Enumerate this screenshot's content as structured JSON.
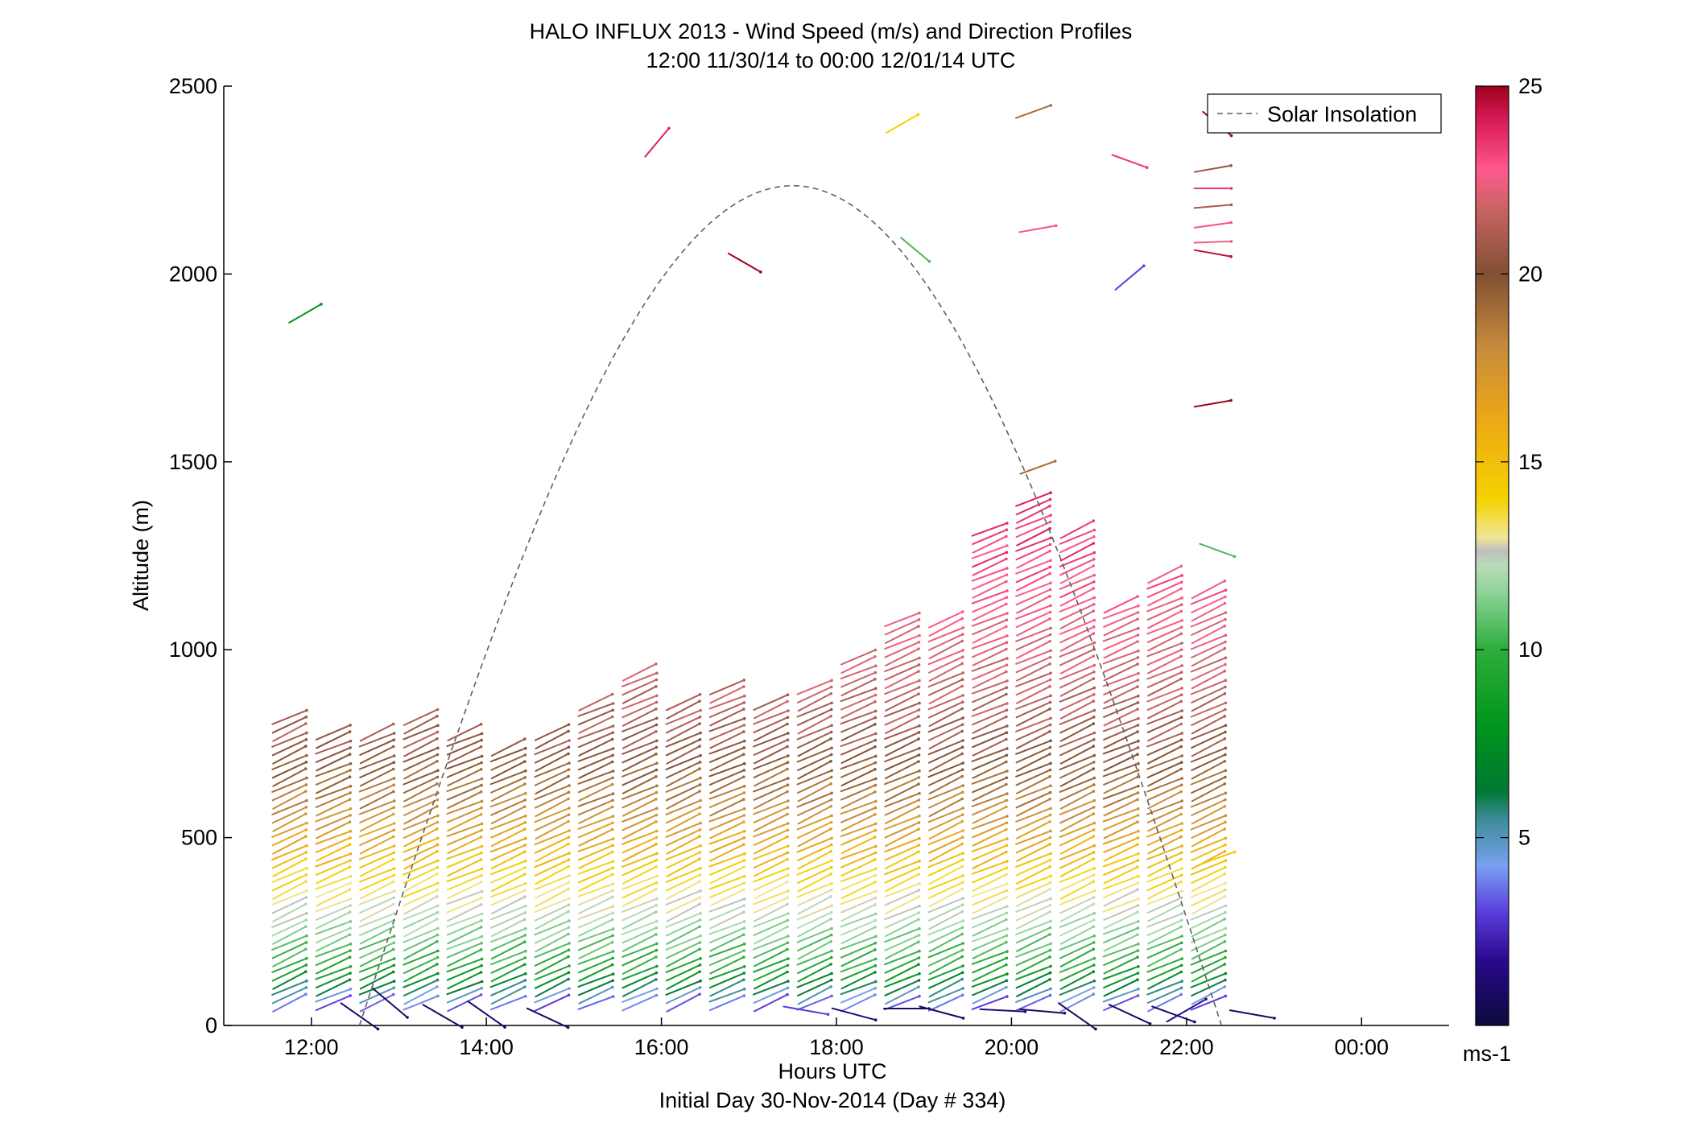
{
  "chart_data": {
    "type": "wind-barb-profile",
    "title": "HALO INFLUX 2013 - Wind Speed (m/s) and Direction Profiles",
    "subtitle": "12:00 11/30/14 to 00:00 12/01/14  UTC",
    "xlabel": "Hours UTC",
    "xlabel2": "Initial Day 30-Nov-2014 (Day # 334)",
    "ylabel": "Altitude (m)",
    "xlim": [
      11.0,
      25.0
    ],
    "ylim": [
      0,
      2500
    ],
    "xticks": [
      {
        "value": 12,
        "label": "12:00"
      },
      {
        "value": 14,
        "label": "14:00"
      },
      {
        "value": 16,
        "label": "16:00"
      },
      {
        "value": 18,
        "label": "18:00"
      },
      {
        "value": 20,
        "label": "20:00"
      },
      {
        "value": 22,
        "label": "22:00"
      },
      {
        "value": 24,
        "label": "00:00"
      }
    ],
    "yticks": [
      0,
      500,
      1000,
      1500,
      2000,
      2500
    ],
    "legend": {
      "label": "Solar Insolation",
      "style": "dashed",
      "color": "#606060",
      "placement": "top-right"
    },
    "colorbar": {
      "min": 0,
      "max": 25,
      "ticks": [
        5,
        10,
        15,
        20,
        25
      ],
      "unit": "ms-1"
    },
    "solar_insolation_curve": {
      "start_hour": 12.55,
      "peak_hour": 17.5,
      "end_hour": 22.4,
      "peak_altitude": 2235
    },
    "profile_times": [
      11.75,
      12.25,
      12.75,
      13.25,
      13.75,
      14.25,
      14.75,
      15.25,
      15.75,
      16.25,
      16.75,
      17.25,
      17.75,
      18.25,
      18.75,
      19.25,
      19.75,
      20.25,
      20.75,
      21.25,
      21.75,
      22.25
    ],
    "profile_top_altitudes": [
      830,
      790,
      790,
      830,
      790,
      750,
      790,
      870,
      950,
      870,
      910,
      870,
      910,
      990,
      1090,
      1090,
      1330,
      1410,
      1330,
      1130,
      1210,
      1170
    ],
    "speed_vs_altitude": [
      {
        "altitude": 30,
        "speed": 1.5
      },
      {
        "altitude": 150,
        "speed": 9.5
      },
      {
        "altitude": 300,
        "speed": 12.5
      },
      {
        "altitude": 450,
        "speed": 15.5
      },
      {
        "altitude": 600,
        "speed": 18.5
      },
      {
        "altitude": 750,
        "speed": 20.5
      },
      {
        "altitude": 900,
        "speed": 21.5
      },
      {
        "altitude": 1100,
        "speed": 22.5
      },
      {
        "altitude": 1300,
        "speed": 23.5
      }
    ],
    "isolated_barbs": [
      {
        "x": 11.93,
        "altitude": 1895,
        "speed": 8.0,
        "dir": 60
      },
      {
        "x": 15.95,
        "altitude": 2350,
        "speed": 24.0,
        "dir": 40
      },
      {
        "x": 16.95,
        "altitude": 2030,
        "speed": 25.0,
        "dir": 120
      },
      {
        "x": 18.75,
        "altitude": 2400,
        "speed": 14.5,
        "dir": 60
      },
      {
        "x": 18.9,
        "altitude": 2065,
        "speed": 10.5,
        "dir": 130
      },
      {
        "x": 20.25,
        "altitude": 2432,
        "speed": 19.0,
        "dir": 70
      },
      {
        "x": 20.3,
        "altitude": 2120,
        "speed": 23.0,
        "dir": 80
      },
      {
        "x": 21.35,
        "altitude": 2300,
        "speed": 23.5,
        "dir": 110
      },
      {
        "x": 21.35,
        "altitude": 1990,
        "speed": 3.0,
        "dir": 50
      },
      {
        "x": 22.35,
        "altitude": 2400,
        "speed": 25.0,
        "dir": 130
      },
      {
        "x": 22.3,
        "altitude": 2280,
        "speed": 20.5,
        "dir": 80
      },
      {
        "x": 22.3,
        "altitude": 2228,
        "speed": 23.5,
        "dir": 90
      },
      {
        "x": 22.3,
        "altitude": 2180,
        "speed": 20.8,
        "dir": 85
      },
      {
        "x": 22.3,
        "altitude": 2130,
        "speed": 23.0,
        "dir": 82
      },
      {
        "x": 22.3,
        "altitude": 2085,
        "speed": 22.5,
        "dir": 88
      },
      {
        "x": 22.3,
        "altitude": 2055,
        "speed": 24.5,
        "dir": 100
      },
      {
        "x": 22.3,
        "altitude": 1655,
        "speed": 25.0,
        "dir": 80
      },
      {
        "x": 20.3,
        "altitude": 1485,
        "speed": 19.0,
        "dir": 70
      },
      {
        "x": 22.35,
        "altitude": 1265,
        "speed": 10.5,
        "dir": 110
      },
      {
        "x": 22.35,
        "altitude": 445,
        "speed": 15.0,
        "dir": 70
      }
    ],
    "surface_barbs": [
      {
        "x": 12.55,
        "altitude": 25,
        "speed": 1.0,
        "dir": 125
      },
      {
        "x": 12.9,
        "altitude": 60,
        "speed": 1.0,
        "dir": 130
      },
      {
        "x": 13.5,
        "altitude": 25,
        "speed": 1.0,
        "dir": 120
      },
      {
        "x": 14.0,
        "altitude": 30,
        "speed": 1.0,
        "dir": 125
      },
      {
        "x": 14.7,
        "altitude": 20,
        "speed": 1.0,
        "dir": 115
      },
      {
        "x": 17.65,
        "altitude": 40,
        "speed": 3.0,
        "dir": 100
      },
      {
        "x": 18.2,
        "altitude": 30,
        "speed": 1.5,
        "dir": 105
      },
      {
        "x": 18.8,
        "altitude": 45,
        "speed": 1.0,
        "dir": 90
      },
      {
        "x": 19.2,
        "altitude": 35,
        "speed": 1.0,
        "dir": 105
      },
      {
        "x": 19.9,
        "altitude": 40,
        "speed": 1.5,
        "dir": 93
      },
      {
        "x": 20.35,
        "altitude": 38,
        "speed": 1.0,
        "dir": 95
      },
      {
        "x": 20.75,
        "altitude": 25,
        "speed": 1.0,
        "dir": 125
      },
      {
        "x": 21.35,
        "altitude": 30,
        "speed": 1.0,
        "dir": 115
      },
      {
        "x": 21.85,
        "altitude": 30,
        "speed": 1.0,
        "dir": 110
      },
      {
        "x": 22.0,
        "altitude": 40,
        "speed": 2.0,
        "dir": 60
      },
      {
        "x": 22.75,
        "altitude": 30,
        "speed": 1.0,
        "dir": 100
      }
    ]
  }
}
